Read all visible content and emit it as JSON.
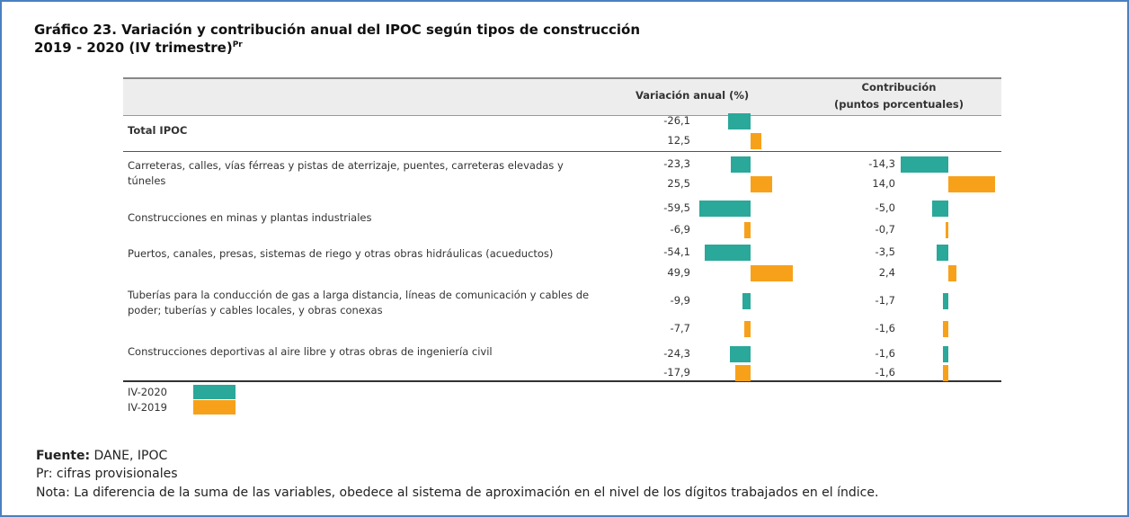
{
  "chart_data": {
    "type": "bar-table",
    "title": "Gráfico 23. Variación y contribución anual del IPOC según tipos de construcción",
    "subtitle": "2019 - 2020 (IV trimestre)",
    "subtitle_sup": "Pr",
    "column_1": "Variación anual (%)",
    "column_2": [
      "Contribución",
      "(puntos porcentuales)"
    ],
    "categories": [
      "Total IPOC",
      "Carreteras, calles, vías férreas y pistas de aterrizaje, puentes, carreteras elevadas y túneles",
      "Construcciones  en minas y plantas industriales",
      "Puertos, canales, presas, sistemas de riego y otras obras hidráulicas (acueductos)",
      "Tuberías para la conducción de gas a larga distancia, líneas de comunicación y cables de poder; tuberías y cables locales, y obras conexas",
      "Construcciones deportivas al aire libre y otras obras de ingeniería civil"
    ],
    "series": [
      {
        "name": "IV-2020",
        "color": "#2aa89a",
        "values": [
          -26.1,
          -23.3,
          -59.5,
          -54.1,
          -9.9,
          -24.3
        ],
        "value_labels": [
          "-26,1",
          "-23,3",
          "-59,5",
          "-54,1",
          "-9,9",
          "-24,3"
        ],
        "contribution": [
          null,
          -14.3,
          -5.0,
          -3.5,
          -1.7,
          -1.6
        ],
        "contribution_labels": [
          null,
          "-14,3",
          "-5,0",
          "-3,5",
          "-1,7",
          "-1,6"
        ]
      },
      {
        "name": "IV-2019",
        "color": "#f7a11a",
        "values": [
          12.5,
          25.5,
          -6.9,
          49.9,
          -7.7,
          -17.9
        ],
        "value_labels": [
          "12,5",
          "25,5",
          "-6,9",
          "49,9",
          "-7,7",
          "-17,9"
        ],
        "contribution": [
          null,
          14.0,
          -0.7,
          2.4,
          -1.6,
          -1.6
        ],
        "contribution_labels": [
          null,
          "14,0",
          "-0,7",
          "2,4",
          "-1,6",
          "-1,6"
        ]
      }
    ],
    "source_label": "Fuente:",
    "source": "DANE, IPOC",
    "notes": [
      "Pr: cifras provisionales",
      "Nota: La diferencia de la suma de las variables, obedece al sistema de aproximación en el nivel de los dígitos trabajados en el índice."
    ]
  }
}
